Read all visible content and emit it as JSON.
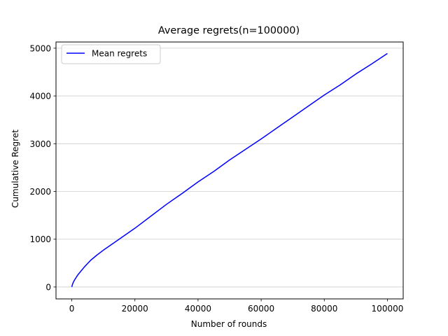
{
  "chart_data": {
    "type": "line",
    "title": "Average regrets(n=100000)",
    "xlabel": "Number of rounds",
    "ylabel": "Cumulative Regret",
    "xlim": [
      -5000,
      105000
    ],
    "ylim": [
      -250,
      5130
    ],
    "xticks": [
      0,
      20000,
      40000,
      60000,
      80000,
      100000
    ],
    "yticks": [
      0,
      1000,
      2000,
      3000,
      4000,
      5000
    ],
    "grid": "horizontal",
    "legend_position": "top-left",
    "series": [
      {
        "name": "Mean regrets",
        "color": "#0000ff",
        "x": [
          0,
          200,
          500,
          1000,
          2000,
          3000,
          4000,
          5000,
          6000,
          8000,
          10000,
          15000,
          20000,
          25000,
          30000,
          35000,
          40000,
          45000,
          50000,
          55000,
          60000,
          65000,
          70000,
          75000,
          80000,
          85000,
          90000,
          95000,
          100000
        ],
        "y": [
          0,
          50,
          100,
          160,
          260,
          340,
          420,
          490,
          560,
          670,
          770,
          1000,
          1230,
          1480,
          1730,
          1960,
          2200,
          2420,
          2660,
          2880,
          3100,
          3330,
          3560,
          3790,
          4020,
          4230,
          4460,
          4670,
          4890
        ]
      }
    ]
  }
}
